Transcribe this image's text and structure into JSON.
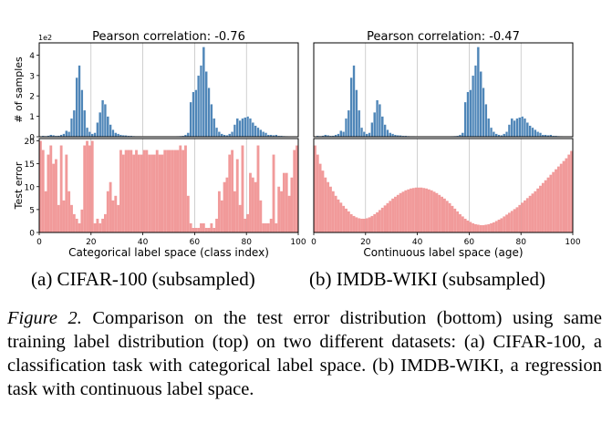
{
  "chart_data": [
    {
      "type": "bar",
      "panel": "a-top",
      "title": "Pearson correlation: -0.76",
      "ylabel": "# of samples",
      "y_scale_label": "1e2",
      "x_range": [
        0,
        100
      ],
      "ylim": [
        0,
        4.6
      ],
      "y_ticks": [
        "0",
        "1",
        "2",
        "3",
        "4"
      ],
      "x": [
        0,
        1,
        2,
        3,
        4,
        5,
        6,
        7,
        8,
        9,
        10,
        11,
        12,
        13,
        14,
        15,
        16,
        17,
        18,
        19,
        20,
        21,
        22,
        23,
        24,
        25,
        26,
        27,
        28,
        29,
        30,
        31,
        32,
        33,
        34,
        35,
        36,
        37,
        38,
        39,
        40,
        41,
        42,
        43,
        44,
        45,
        46,
        47,
        48,
        49,
        50,
        51,
        52,
        53,
        54,
        55,
        56,
        57,
        58,
        59,
        60,
        61,
        62,
        63,
        64,
        65,
        66,
        67,
        68,
        69,
        70,
        71,
        72,
        73,
        74,
        75,
        76,
        77,
        78,
        79,
        80,
        81,
        82,
        83,
        84,
        85,
        86,
        87,
        88,
        89,
        90,
        91,
        92,
        93,
        94,
        95,
        96,
        97,
        98,
        99
      ],
      "values": [
        0.02,
        0.05,
        0.04,
        0.06,
        0.1,
        0.08,
        0.05,
        0.06,
        0.1,
        0.15,
        0.3,
        0.25,
        0.9,
        1.3,
        2.9,
        3.5,
        2.3,
        1.3,
        0.45,
        0.25,
        0.15,
        0.2,
        0.7,
        1.2,
        1.8,
        1.6,
        1.0,
        0.6,
        0.35,
        0.2,
        0.15,
        0.1,
        0.08,
        0.07,
        0.05,
        0.05,
        0.04,
        0.03,
        0.03,
        0.02,
        0.02,
        0.02,
        0.02,
        0.02,
        0.02,
        0.02,
        0.02,
        0.02,
        0.02,
        0.02,
        0.02,
        0.02,
        0.02,
        0.03,
        0.04,
        0.05,
        0.1,
        0.2,
        1.7,
        2.2,
        2.3,
        3.0,
        3.5,
        4.4,
        3.2,
        2.4,
        1.6,
        0.9,
        0.45,
        0.25,
        0.15,
        0.1,
        0.08,
        0.15,
        0.25,
        0.6,
        0.9,
        0.8,
        0.9,
        0.95,
        1.0,
        0.9,
        0.7,
        0.55,
        0.45,
        0.35,
        0.25,
        0.2,
        0.1,
        0.1,
        0.08,
        0.1,
        0.05,
        0.05,
        0.04,
        0.03,
        0.02,
        0.02,
        0.02,
        0.02
      ]
    },
    {
      "type": "bar",
      "panel": "a-bottom",
      "ylabel": "Test error",
      "xlabel": "Categorical label space (class index)",
      "x_range": [
        0,
        100
      ],
      "ylim": [
        0,
        20.5
      ],
      "y_ticks": [
        "0",
        "5",
        "10",
        "15",
        "20"
      ],
      "x_ticks": [
        "0",
        "20",
        "40",
        "60",
        "80",
        "100"
      ],
      "x": [
        0,
        1,
        2,
        3,
        4,
        5,
        6,
        7,
        8,
        9,
        10,
        11,
        12,
        13,
        14,
        15,
        16,
        17,
        18,
        19,
        20,
        21,
        22,
        23,
        24,
        25,
        26,
        27,
        28,
        29,
        30,
        31,
        32,
        33,
        34,
        35,
        36,
        37,
        38,
        39,
        40,
        41,
        42,
        43,
        44,
        45,
        46,
        47,
        48,
        49,
        50,
        51,
        52,
        53,
        54,
        55,
        56,
        57,
        58,
        59,
        60,
        61,
        62,
        63,
        64,
        65,
        66,
        67,
        68,
        69,
        70,
        71,
        72,
        73,
        74,
        75,
        76,
        77,
        78,
        79,
        80,
        81,
        82,
        83,
        84,
        85,
        86,
        87,
        88,
        89,
        90,
        91,
        92,
        93,
        94,
        95,
        96,
        97,
        98,
        99
      ],
      "values": [
        20,
        18,
        9,
        17,
        19,
        15,
        16,
        6,
        19,
        7,
        17,
        9,
        6,
        4,
        3,
        2,
        5,
        19,
        20,
        19,
        20,
        2,
        3,
        2,
        3,
        4,
        9,
        11,
        7,
        8,
        6,
        18,
        17,
        18,
        18,
        18,
        17,
        18,
        17,
        17,
        18,
        18,
        17,
        17,
        17,
        18,
        17,
        17,
        18,
        18,
        18,
        18,
        18,
        18,
        19,
        18,
        19,
        8,
        2,
        1,
        1,
        1,
        2,
        2,
        1,
        1,
        2,
        1,
        3,
        9,
        7,
        11,
        12,
        17,
        18,
        9,
        16,
        6,
        19,
        3,
        4,
        13,
        12,
        11,
        19,
        7,
        2,
        2,
        2,
        3,
        17,
        2,
        10,
        9,
        13,
        13,
        8,
        12,
        18,
        19
      ]
    },
    {
      "type": "bar",
      "panel": "b-top",
      "title": "Pearson correlation: -0.47",
      "x_range": [
        0,
        100
      ],
      "ylim": [
        0,
        4.6
      ],
      "x": [
        0,
        1,
        2,
        3,
        4,
        5,
        6,
        7,
        8,
        9,
        10,
        11,
        12,
        13,
        14,
        15,
        16,
        17,
        18,
        19,
        20,
        21,
        22,
        23,
        24,
        25,
        26,
        27,
        28,
        29,
        30,
        31,
        32,
        33,
        34,
        35,
        36,
        37,
        38,
        39,
        40,
        41,
        42,
        43,
        44,
        45,
        46,
        47,
        48,
        49,
        50,
        51,
        52,
        53,
        54,
        55,
        56,
        57,
        58,
        59,
        60,
        61,
        62,
        63,
        64,
        65,
        66,
        67,
        68,
        69,
        70,
        71,
        72,
        73,
        74,
        75,
        76,
        77,
        78,
        79,
        80,
        81,
        82,
        83,
        84,
        85,
        86,
        87,
        88,
        89,
        90,
        91,
        92,
        93,
        94,
        95,
        96,
        97,
        98,
        99
      ],
      "values": [
        0.02,
        0.05,
        0.04,
        0.06,
        0.1,
        0.08,
        0.05,
        0.06,
        0.1,
        0.15,
        0.3,
        0.25,
        0.9,
        1.3,
        2.9,
        3.5,
        2.3,
        1.3,
        0.45,
        0.25,
        0.15,
        0.2,
        0.7,
        1.2,
        1.8,
        1.6,
        1.0,
        0.6,
        0.35,
        0.2,
        0.15,
        0.1,
        0.08,
        0.07,
        0.05,
        0.05,
        0.04,
        0.03,
        0.03,
        0.02,
        0.02,
        0.02,
        0.02,
        0.02,
        0.02,
        0.02,
        0.02,
        0.02,
        0.02,
        0.02,
        0.02,
        0.02,
        0.02,
        0.03,
        0.04,
        0.05,
        0.1,
        0.2,
        1.7,
        2.2,
        2.3,
        3.0,
        3.5,
        4.4,
        3.2,
        2.4,
        1.6,
        0.9,
        0.45,
        0.25,
        0.15,
        0.1,
        0.08,
        0.15,
        0.25,
        0.6,
        0.9,
        0.8,
        0.9,
        0.95,
        1.0,
        0.9,
        0.7,
        0.55,
        0.45,
        0.35,
        0.25,
        0.2,
        0.1,
        0.1,
        0.08,
        0.1,
        0.05,
        0.05,
        0.04,
        0.03,
        0.02,
        0.02,
        0.02,
        0.02
      ]
    },
    {
      "type": "bar",
      "panel": "b-bottom",
      "xlabel": "Continuous label space (age)",
      "x_range": [
        0,
        100
      ],
      "ylim": [
        0,
        20.5
      ],
      "x_ticks": [
        "0",
        "20",
        "40",
        "60",
        "80",
        "100"
      ],
      "x": [
        0,
        1,
        2,
        3,
        4,
        5,
        6,
        7,
        8,
        9,
        10,
        11,
        12,
        13,
        14,
        15,
        16,
        17,
        18,
        19,
        20,
        21,
        22,
        23,
        24,
        25,
        26,
        27,
        28,
        29,
        30,
        31,
        32,
        33,
        34,
        35,
        36,
        37,
        38,
        39,
        40,
        41,
        42,
        43,
        44,
        45,
        46,
        47,
        48,
        49,
        50,
        51,
        52,
        53,
        54,
        55,
        56,
        57,
        58,
        59,
        60,
        61,
        62,
        63,
        64,
        65,
        66,
        67,
        68,
        69,
        70,
        71,
        72,
        73,
        74,
        75,
        76,
        77,
        78,
        79,
        80,
        81,
        82,
        83,
        84,
        85,
        86,
        87,
        88,
        89,
        90,
        91,
        92,
        93,
        94,
        95,
        96,
        97,
        98,
        99
      ],
      "values": [
        19,
        17,
        15,
        13.5,
        12,
        11,
        10,
        9,
        8,
        7.2,
        6.5,
        5.8,
        5.2,
        4.6,
        4.0,
        3.6,
        3.3,
        3.1,
        3.0,
        3.0,
        3.1,
        3.3,
        3.6,
        4.0,
        4.4,
        4.9,
        5.4,
        5.9,
        6.4,
        6.9,
        7.4,
        7.8,
        8.2,
        8.6,
        8.9,
        9.2,
        9.4,
        9.6,
        9.7,
        9.8,
        9.8,
        9.8,
        9.7,
        9.6,
        9.4,
        9.2,
        8.9,
        8.6,
        8.2,
        7.8,
        7.4,
        6.9,
        6.4,
        5.8,
        5.2,
        4.6,
        4.0,
        3.5,
        3.0,
        2.6,
        2.3,
        2.0,
        1.8,
        1.7,
        1.6,
        1.6,
        1.7,
        1.8,
        2.0,
        2.2,
        2.5,
        2.8,
        3.1,
        3.5,
        3.9,
        4.3,
        4.7,
        5.1,
        5.5,
        6.0,
        6.5,
        7.0,
        7.5,
        8.0,
        8.5,
        9.0,
        9.6,
        10.2,
        10.8,
        11.4,
        12.0,
        12.6,
        13.2,
        13.8,
        14.4,
        15.0,
        15.6,
        16.2,
        17.0,
        17.8
      ]
    }
  ],
  "subcaptions": {
    "a": "(a)  CIFAR-100 (subsampled)",
    "b": "(b)  IMDB-WIKI (subsampled)"
  },
  "caption": {
    "label": "Figure 2.",
    "text": " Comparison on the test error distribution (bottom) using same training label distribution (top) on two different datasets: (a) CIFAR-100, a classification task with categorical label space. (b) IMDB-WIKI, a regression task with continuous label space."
  },
  "colors": {
    "hist_fill": "#4f86b8",
    "hist_edge": "#ffffff",
    "error_fill": "#f19a9a",
    "grid": "#b0b0b0",
    "axis": "#000000"
  }
}
